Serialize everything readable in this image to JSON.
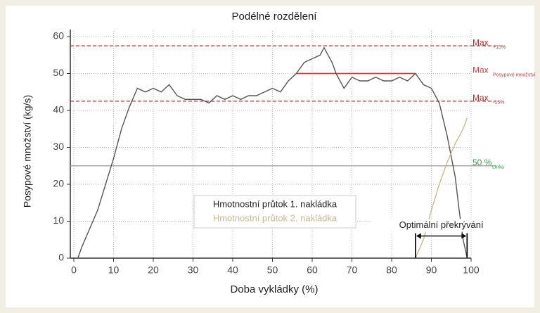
{
  "chart_data": {
    "type": "line",
    "title": "Podélné rozdělení",
    "x_label": "Doba vykládky (%)",
    "y_label": "Posypové množství (kg/s)",
    "xlim": [
      0,
      100
    ],
    "ylim": [
      0,
      60
    ],
    "xticks": [
      0,
      10,
      20,
      30,
      40,
      50,
      60,
      70,
      80,
      90,
      100
    ],
    "yticks": [
      0,
      10,
      20,
      30,
      40,
      50,
      60
    ],
    "grid": true,
    "series": [
      {
        "name": "Hmotnostní průtok 1. nakládka",
        "color": "#555555",
        "x": [
          0,
          1,
          2,
          4,
          6,
          8,
          10,
          12,
          14,
          16,
          18,
          20,
          22,
          24,
          26,
          28,
          30,
          32,
          34,
          36,
          38,
          40,
          42,
          44,
          46,
          48,
          50,
          52,
          54,
          56,
          58,
          60,
          62,
          63,
          65,
          66,
          67,
          68,
          70,
          72,
          74,
          76,
          78,
          80,
          82,
          84,
          86,
          88,
          90,
          92,
          94,
          96,
          97,
          98,
          99
        ],
        "values": [
          0,
          0,
          3,
          8,
          13,
          20,
          27,
          35,
          41,
          46,
          45,
          46,
          45,
          47,
          44,
          43,
          43,
          43,
          42,
          44,
          43,
          44,
          43,
          44,
          44,
          45,
          46,
          45,
          48,
          50,
          53,
          54,
          55,
          57,
          53,
          50,
          48,
          46,
          49,
          48,
          48,
          49,
          48,
          48,
          49,
          48,
          50,
          47,
          46,
          42,
          33,
          22,
          13,
          5,
          0
        ]
      },
      {
        "name": "Hmotnostní průtok 2. nakládka",
        "color": "#c9b98c",
        "x": [
          86,
          88,
          90,
          92,
          94,
          96,
          98,
          99
        ],
        "values": [
          0,
          5,
          13,
          20,
          26,
          31,
          35,
          38
        ]
      }
    ],
    "reference_lines": [
      {
        "value": 57.5,
        "label": "Max",
        "sublabel": "+15%",
        "color": "#b03030",
        "style": "dashed"
      },
      {
        "value": 50,
        "label": "Max",
        "sublabel": "Posypové množství",
        "color": "#d04040",
        "style": "solid",
        "x_range": [
          56,
          86
        ]
      },
      {
        "value": 42.5,
        "label": "Max",
        "sublabel": "-15%",
        "color": "#b03030",
        "style": "dashed"
      },
      {
        "value": 25,
        "label": "50 %",
        "sublabel": "Linka",
        "color": "#2e9a3e",
        "style": "gray"
      }
    ],
    "overlap": {
      "label": "Optimální překrývání",
      "x_range": [
        86,
        99
      ],
      "y": 6
    }
  }
}
